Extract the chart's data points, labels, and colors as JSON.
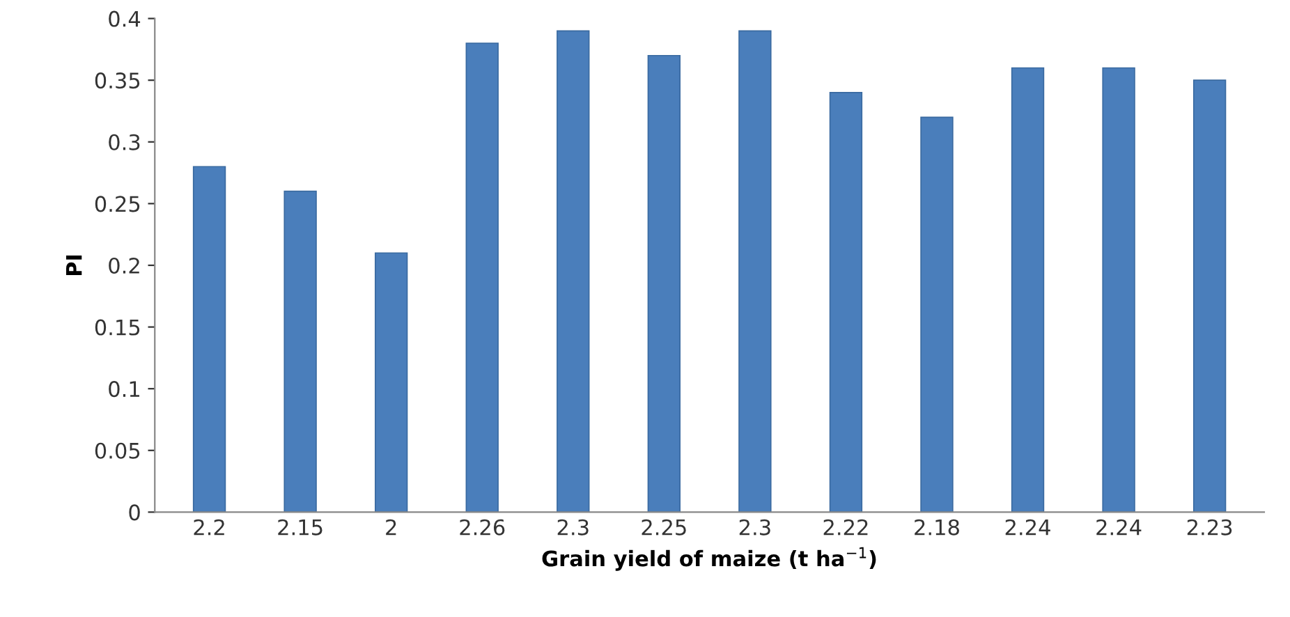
{
  "chart_data": {
    "type": "bar",
    "xlabel": "Grain yield of maize (t ha$^{−1}$)",
    "ylabel": "PI",
    "categories": [
      "2.2",
      "2.15",
      "2",
      "2.26",
      "2.3",
      "2.25",
      "2.3",
      "2.22",
      "2.18",
      "2.24",
      "2.24",
      "2.23"
    ],
    "values": [
      0.28,
      0.26,
      0.21,
      0.38,
      0.39,
      0.37,
      0.39,
      0.34,
      0.32,
      0.36,
      0.36,
      0.35
    ],
    "color": "#4a7ebb",
    "ylim": [
      0,
      0.4
    ],
    "yticks": [
      0,
      0.05,
      0.1,
      0.15,
      0.2,
      0.25,
      0.3,
      0.35,
      0.4
    ],
    "grid": false,
    "legend": false
  }
}
